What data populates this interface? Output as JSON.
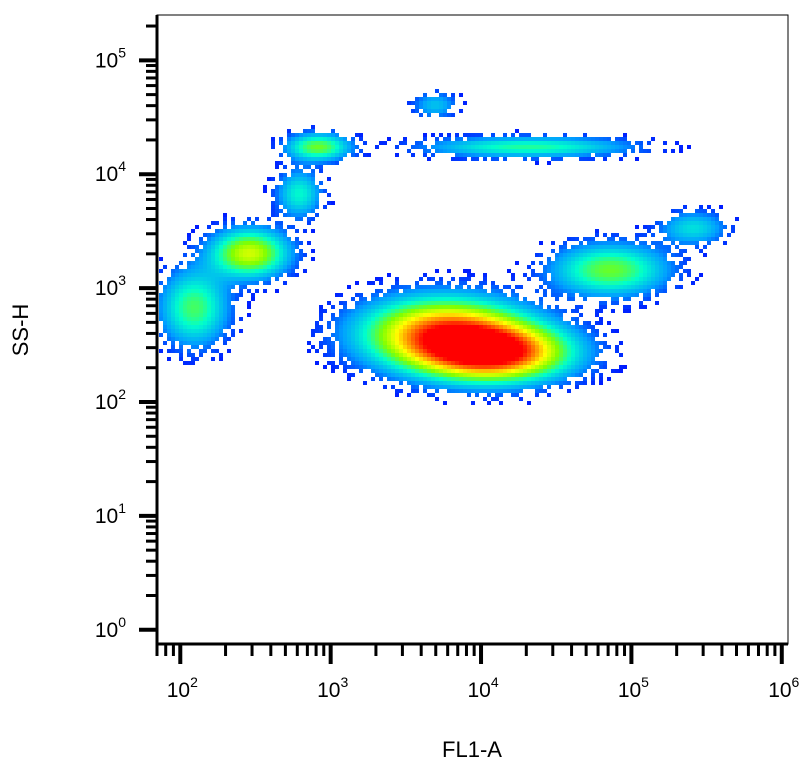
{
  "chart_data": {
    "type": "scatter",
    "subtype": "flow-cytometry-density",
    "xlabel": "FL1-A",
    "ylabel": "SS-H",
    "x_scale": "log",
    "y_scale": "log",
    "xlim": [
      70,
      1100000
    ],
    "ylim": [
      0.75,
      250000
    ],
    "x_ticks": [
      {
        "base": "10",
        "exp": "2",
        "value": 100
      },
      {
        "base": "10",
        "exp": "3",
        "value": 1000
      },
      {
        "base": "10",
        "exp": "4",
        "value": 10000
      },
      {
        "base": "10",
        "exp": "5",
        "value": 100000
      },
      {
        "base": "10",
        "exp": "6",
        "value": 1000000
      }
    ],
    "y_ticks": [
      {
        "base": "10",
        "exp": "0",
        "value": 1
      },
      {
        "base": "10",
        "exp": "1",
        "value": 10
      },
      {
        "base": "10",
        "exp": "2",
        "value": 100
      },
      {
        "base": "10",
        "exp": "3",
        "value": 1000
      },
      {
        "base": "10",
        "exp": "4",
        "value": 10000
      },
      {
        "base": "10",
        "exp": "5",
        "value": 100000
      }
    ],
    "grid": false,
    "legend": "none",
    "colormap": [
      "#0000ff",
      "#00a0ff",
      "#00ffcc",
      "#80ff00",
      "#ffff00",
      "#ff8000",
      "#ff0000"
    ],
    "populations": [
      {
        "center": [
          12000,
          280
        ],
        "spread": [
          0.32,
          0.16
        ],
        "weight": 1.0
      },
      {
        "center": [
          5500,
          420
        ],
        "spread": [
          0.35,
          0.2
        ],
        "weight": 0.9
      },
      {
        "center": [
          70000,
          1500
        ],
        "spread": [
          0.25,
          0.15
        ],
        "weight": 0.45
      },
      {
        "center": [
          250000,
          3500
        ],
        "spread": [
          0.15,
          0.1
        ],
        "weight": 0.25
      },
      {
        "center": [
          280,
          2100
        ],
        "spread": [
          0.17,
          0.14
        ],
        "weight": 0.6
      },
      {
        "center": [
          120,
          700
        ],
        "spread": [
          0.15,
          0.22
        ],
        "weight": 0.4
      },
      {
        "center": [
          800,
          18000
        ],
        "spread": [
          0.14,
          0.08
        ],
        "weight": 0.45
      },
      {
        "center": [
          600,
          7000
        ],
        "spread": [
          0.1,
          0.14
        ],
        "weight": 0.3
      },
      {
        "center": [
          4800,
          42000
        ],
        "spread": [
          0.1,
          0.08
        ],
        "weight": 0.2
      },
      {
        "center": [
          20000,
          18000
        ],
        "spread": [
          0.45,
          0.06
        ],
        "weight": 0.35
      }
    ]
  }
}
